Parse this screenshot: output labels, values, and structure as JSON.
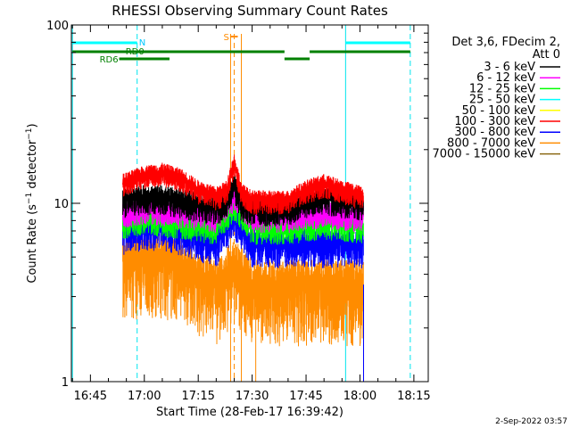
{
  "chart_data": {
    "type": "line",
    "title": "RHESSI Observing Summary Count Rates",
    "xlabel": "Start Time (28-Feb-17 16:39:42)",
    "ylabel": "Count Rate (s⁻¹ detector⁻¹)",
    "yscale": "log",
    "ylim": [
      1,
      100
    ],
    "xlim": [
      "16:39:42",
      "18:19:00"
    ],
    "x_ticks": [
      "16:45",
      "17:00",
      "17:15",
      "17:30",
      "17:45",
      "18:00",
      "18:15"
    ],
    "y_ticks": [
      "1",
      "10",
      "100"
    ],
    "legend": {
      "placement": "right",
      "header": [
        "Det 3,6, FDecim 2,",
        "Att 0"
      ],
      "entries": [
        {
          "label": "3 - 6 keV",
          "color": "#000000"
        },
        {
          "label": "6 - 12 keV",
          "color": "#ff00ff"
        },
        {
          "label": "12 - 25 keV",
          "color": "#00ff00"
        },
        {
          "label": "25 - 50 keV",
          "color": "#00ffff"
        },
        {
          "label": "50 - 100 keV",
          "color": "#ffff00"
        },
        {
          "label": "100 - 300 keV",
          "color": "#ff0000"
        },
        {
          "label": "300 - 800 keV",
          "color": "#0000ff"
        },
        {
          "label": "800 - 7000 keV",
          "color": "#ff8c00"
        },
        {
          "label": "7000 - 15000 keV",
          "color": "#8b6914"
        }
      ]
    },
    "data_start": "16:54",
    "data_end": "18:01",
    "series": [
      {
        "name": "3 - 6 keV",
        "color": "#000000",
        "times": [
          "16:54",
          "17:00",
          "17:05",
          "17:10",
          "17:15",
          "17:20",
          "17:23",
          "17:25",
          "17:27",
          "17:30",
          "17:35",
          "17:40",
          "17:45",
          "17:50",
          "17:55",
          "18:01"
        ],
        "values": [
          10.5,
          11,
          11,
          10.5,
          10,
          9.5,
          10.5,
          13,
          10,
          9.5,
          9.5,
          9.5,
          10.5,
          11,
          10.5,
          10
        ]
      },
      {
        "name": "100 - 300 keV",
        "color": "#ff0000",
        "times": [
          "16:54",
          "17:00",
          "17:05",
          "17:10",
          "17:15",
          "17:20",
          "17:23",
          "17:25",
          "17:27",
          "17:30",
          "17:35",
          "17:40",
          "17:45",
          "17:50",
          "17:55",
          "18:01"
        ],
        "values": [
          13,
          14.5,
          15,
          14,
          12,
          11,
          12,
          17,
          11.5,
          10.5,
          10.5,
          10.5,
          12,
          13,
          12,
          11
        ]
      },
      {
        "name": "6 - 12 keV",
        "color": "#ff00ff",
        "times": [
          "16:54",
          "17:00",
          "17:10",
          "17:20",
          "17:25",
          "17:30",
          "17:40",
          "17:50",
          "18:01"
        ],
        "values": [
          9,
          9.5,
          9,
          8.5,
          11,
          8.5,
          8.5,
          9,
          8.5
        ]
      },
      {
        "name": "12 - 25 keV",
        "color": "#00ff00",
        "times": [
          "16:54",
          "17:00",
          "17:10",
          "17:20",
          "17:25",
          "17:30",
          "17:40",
          "17:50",
          "18:01"
        ],
        "values": [
          8,
          8.5,
          8,
          7.5,
          10,
          7.5,
          7.5,
          8,
          7.5
        ]
      },
      {
        "name": "300 - 800 keV",
        "color": "#0000ff",
        "times": [
          "16:54",
          "17:00",
          "17:05",
          "17:10",
          "17:15",
          "17:20",
          "17:25",
          "17:30",
          "17:40",
          "17:50",
          "18:01"
        ],
        "values": [
          7,
          7.5,
          7.5,
          7,
          6.5,
          6,
          8.5,
          6,
          6,
          6,
          6
        ]
      },
      {
        "name": "800 - 7000 keV",
        "color": "#ff8c00",
        "times": [
          "16:54",
          "17:00",
          "17:05",
          "17:10",
          "17:15",
          "17:20",
          "17:25",
          "17:30",
          "17:40",
          "17:50",
          "18:01"
        ],
        "values": [
          4.8,
          5,
          5,
          4.5,
          4,
          3.5,
          4.5,
          3.5,
          3.5,
          3.5,
          3.5
        ]
      }
    ],
    "flare_time": "17:25",
    "flare_marker_label": "S",
    "attenuator_times": [
      "17:25"
    ],
    "vertical_lines": {
      "cyan_solid": [
        "16:40",
        "17:56"
      ],
      "cyan_dashed": [
        "16:58",
        "18:14"
      ],
      "orange_solid": [
        "17:24",
        "17:27"
      ],
      "orange_dashed": [
        "17:25"
      ]
    },
    "bars": {
      "night_label": "N",
      "cyan": [
        [
          "16:40",
          "16:58"
        ],
        [
          "17:56",
          "18:14"
        ]
      ],
      "rd0_label": "RD0",
      "rd0": [
        [
          "16:40",
          "17:07"
        ],
        [
          "17:07",
          "17:39"
        ],
        [
          "17:46",
          "18:14"
        ]
      ],
      "rd6_label": "RD6",
      "rd6": [
        [
          "16:53",
          "17:07"
        ],
        [
          "17:39",
          "17:46"
        ]
      ]
    }
  },
  "footer": {
    "timestamp": "2-Sep-2022 03:57"
  }
}
